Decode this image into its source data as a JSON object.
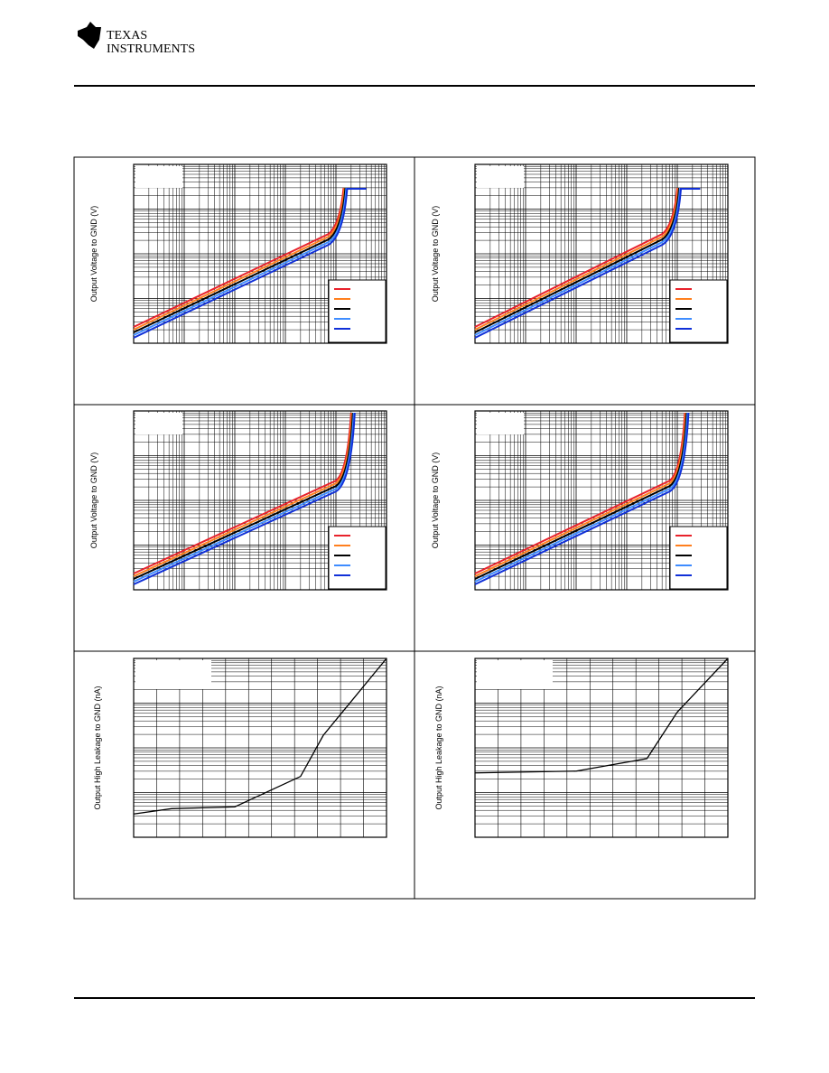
{
  "header": {
    "logo_line1": "TEXAS",
    "logo_line2": "INSTRUMENTS"
  },
  "plots": [
    {
      "y_label": "Output Voltage to GND (V)"
    },
    {
      "y_label": "Output Voltage to GND (V)"
    },
    {
      "y_label": "Output Voltage to GND (V)"
    },
    {
      "y_label": "Output Voltage to GND (V)"
    },
    {
      "y_label": "Output High Leakage to GND (nA)"
    },
    {
      "y_label": "Output High Leakage to GND (nA)"
    }
  ]
}
